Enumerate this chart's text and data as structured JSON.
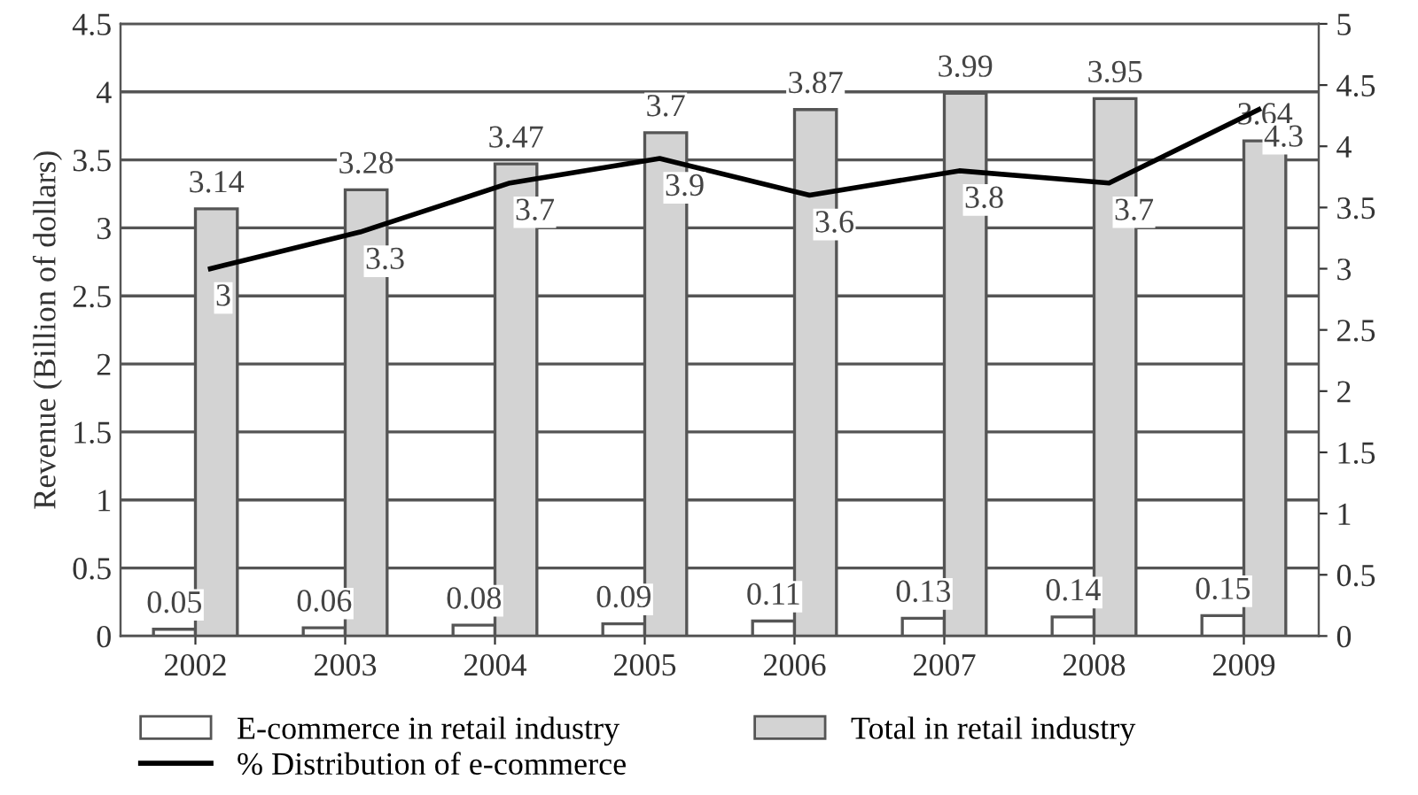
{
  "chart_data": {
    "type": "bar",
    "ylabel": "Revenue (Billion of dollars)",
    "categories": [
      "2002",
      "2003",
      "2004",
      "2005",
      "2006",
      "2007",
      "2008",
      "2009"
    ],
    "series": [
      {
        "name": "E-commerce in retail industry",
        "color": "#ffffff",
        "values": [
          0.05,
          0.06,
          0.08,
          0.09,
          0.11,
          0.13,
          0.14,
          0.15
        ]
      },
      {
        "name": "Total in retail industry",
        "color": "#d3d3d3",
        "values": [
          3.14,
          3.28,
          3.47,
          3.7,
          3.87,
          3.99,
          3.95,
          3.64
        ]
      },
      {
        "name": "% Distribution of e-commerce",
        "type": "line",
        "axis": "y2",
        "color": "#000000",
        "values": [
          3,
          3.3,
          3.7,
          3.9,
          3.6,
          3.8,
          3.7,
          4.3
        ]
      }
    ],
    "ylim": [
      0,
      4.5
    ],
    "yticks": [
      0,
      0.5,
      1,
      1.5,
      2,
      2.5,
      3,
      3.5,
      4,
      4.5
    ],
    "y2lim": [
      0,
      5
    ],
    "y2ticks": [
      0,
      0.5,
      1,
      1.5,
      2,
      2.5,
      3,
      3.5,
      4,
      4.5,
      5
    ],
    "grid": "y",
    "legend": "bottom",
    "data_labels": true,
    "marker": "none",
    "line_style": "solid"
  }
}
